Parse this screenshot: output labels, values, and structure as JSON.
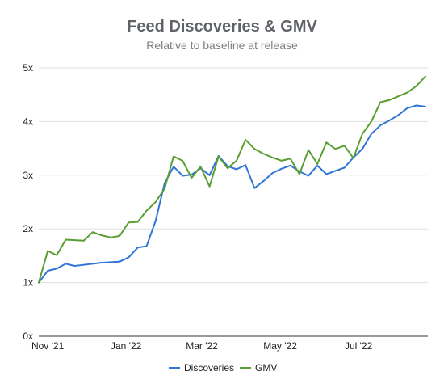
{
  "chart_data": {
    "type": "line",
    "title": "Feed Discoveries & GMV",
    "subtitle": "Relative to baseline at release",
    "ylim": [
      0,
      5
    ],
    "y_ticks": [
      {
        "value": 0,
        "label": "0x"
      },
      {
        "value": 1,
        "label": "1x"
      },
      {
        "value": 2,
        "label": "2x"
      },
      {
        "value": 3,
        "label": "3x"
      },
      {
        "value": 4,
        "label": "4x"
      },
      {
        "value": 5,
        "label": "5x"
      }
    ],
    "x_ticks": [
      {
        "x": "2021-11-01",
        "label": "Nov '21"
      },
      {
        "x": "2022-01-01",
        "label": "Jan '22"
      },
      {
        "x": "2022-03-01",
        "label": "Mar '22"
      },
      {
        "x": "2022-05-01",
        "label": "May '22"
      },
      {
        "x": "2022-07-01",
        "label": "Jul '22"
      }
    ],
    "xlim": [
      "2021-10-25",
      "2022-08-24"
    ],
    "grid": true,
    "legend_position": "bottom",
    "x": [
      "2021-10-25",
      "2021-11-01",
      "2021-11-08",
      "2021-11-15",
      "2021-11-22",
      "2021-11-29",
      "2021-12-06",
      "2021-12-13",
      "2021-12-20",
      "2021-12-27",
      "2022-01-03",
      "2022-01-10",
      "2022-01-17",
      "2022-01-24",
      "2022-01-31",
      "2022-02-07",
      "2022-02-14",
      "2022-02-21",
      "2022-02-28",
      "2022-03-07",
      "2022-03-14",
      "2022-03-21",
      "2022-03-28",
      "2022-04-04",
      "2022-04-11",
      "2022-04-18",
      "2022-04-25",
      "2022-05-02",
      "2022-05-09",
      "2022-05-16",
      "2022-05-23",
      "2022-05-30",
      "2022-06-06",
      "2022-06-13",
      "2022-06-20",
      "2022-06-27",
      "2022-07-04",
      "2022-07-11",
      "2022-07-18",
      "2022-07-25",
      "2022-08-01",
      "2022-08-08",
      "2022-08-15",
      "2022-08-22"
    ],
    "series": [
      {
        "name": "Discoveries",
        "color": "#2f76d8",
        "values": [
          1.0,
          1.22,
          1.26,
          1.35,
          1.31,
          1.33,
          1.35,
          1.37,
          1.38,
          1.39,
          1.47,
          1.65,
          1.68,
          2.15,
          2.85,
          3.16,
          2.99,
          3.01,
          3.13,
          3.0,
          3.36,
          3.17,
          3.11,
          3.19,
          2.76,
          2.89,
          3.04,
          3.12,
          3.18,
          3.07,
          2.99,
          3.18,
          3.02,
          3.08,
          3.14,
          3.33,
          3.49,
          3.77,
          3.93,
          4.02,
          4.12,
          4.25,
          4.3,
          4.28
        ]
      },
      {
        "name": "GMV",
        "color": "#5a9e33",
        "values": [
          1.0,
          1.59,
          1.51,
          1.8,
          1.79,
          1.78,
          1.94,
          1.88,
          1.84,
          1.87,
          2.12,
          2.13,
          2.34,
          2.5,
          2.75,
          3.35,
          3.27,
          2.95,
          3.16,
          2.79,
          3.35,
          3.13,
          3.27,
          3.66,
          3.49,
          3.4,
          3.33,
          3.27,
          3.31,
          3.02,
          3.47,
          3.21,
          3.61,
          3.49,
          3.55,
          3.32,
          3.77,
          4.0,
          4.36,
          4.4,
          4.47,
          4.54,
          4.66,
          4.84
        ]
      }
    ]
  }
}
